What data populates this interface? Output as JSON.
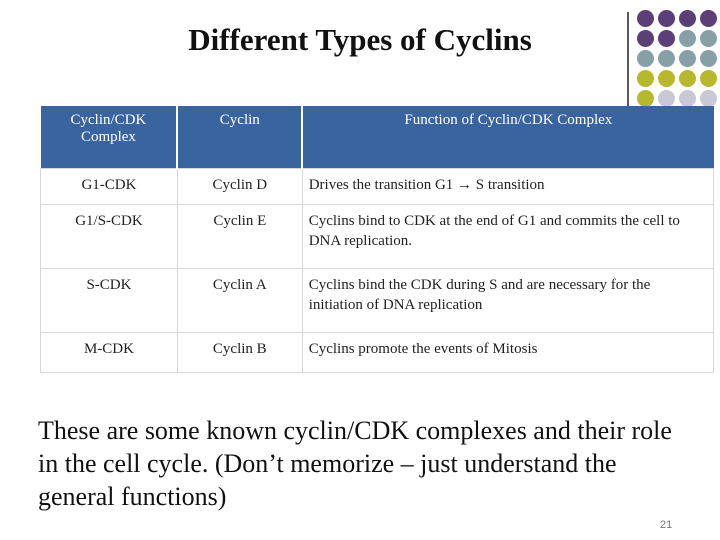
{
  "title": "Different Types of Cyclins",
  "table": {
    "headers": [
      "Cyclin/CDK Complex",
      "Cyclin",
      "Function of Cyclin/CDK Complex"
    ],
    "rows": [
      {
        "complex": "G1-CDK",
        "cyclin": "Cyclin D",
        "function": "Drives the transition G1 → S transition"
      },
      {
        "complex": "G1/S-CDK",
        "cyclin": "Cyclin E",
        "function": "Cyclins bind to CDK at the end of G1 and commits the cell to DNA replication."
      },
      {
        "complex": "S-CDK",
        "cyclin": "Cyclin A",
        "function": "Cyclins bind the CDK during S and are necessary for the initiation of DNA replication"
      },
      {
        "complex": "M-CDK",
        "cyclin": "Cyclin B",
        "function": "Cyclins promote the events of Mitosis"
      }
    ]
  },
  "caption": "These are some known cyclin/CDK complexes and their role in the cell cycle. (Don’t memorize – just understand the general functions)",
  "page_number": "21",
  "colors": {
    "header_bg": "#3a64a0",
    "dot_purple": "#5b3f76",
    "dot_teal": "#86a0a6",
    "dot_olive": "#b8b82e",
    "dot_gray": "#c9c9d6"
  },
  "decoration": {
    "dot_grid": [
      [
        "purple",
        "purple",
        "purple",
        "purple"
      ],
      [
        "purple",
        "purple",
        "teal",
        "teal"
      ],
      [
        "teal",
        "teal",
        "teal",
        "teal"
      ],
      [
        "olive",
        "olive",
        "olive",
        "olive"
      ],
      [
        "olive",
        "gray",
        "gray",
        "gray"
      ]
    ]
  }
}
